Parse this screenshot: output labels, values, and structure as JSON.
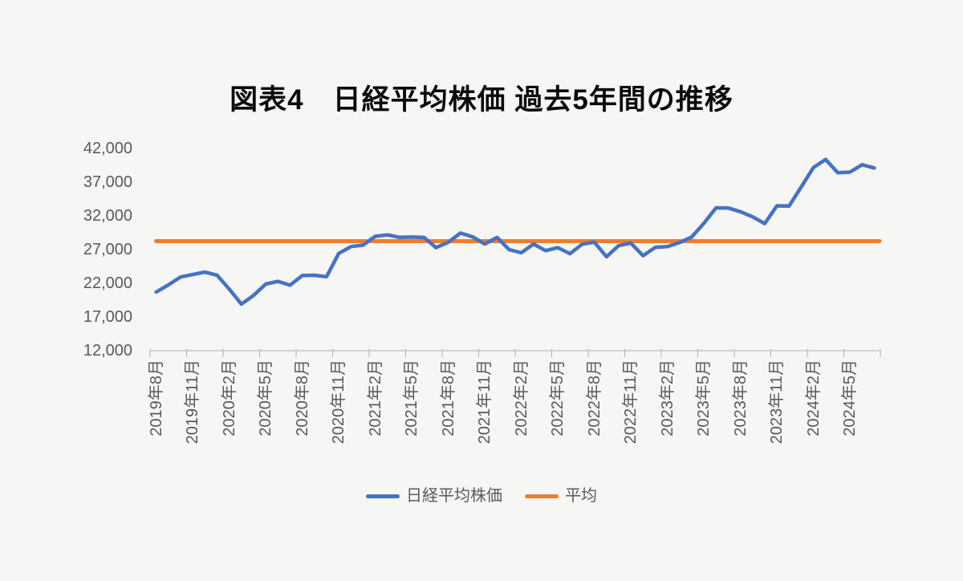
{
  "title": "図表4　日経平均株価 過去5年間の推移",
  "legend": {
    "series1": "日経平均株価",
    "series2": "平均"
  },
  "colors": {
    "nikkei_line": "#4472C4",
    "average_line": "#ED7D31",
    "background": "#F6F6F4",
    "axis": "#B0B0B0",
    "label_text": "#595959",
    "title_text": "#0A0A0A"
  },
  "y_axis": {
    "min": 12000,
    "max": 42000,
    "step": 5000,
    "tick_labels": [
      "42,000",
      "37,000",
      "32,000",
      "27,000",
      "22,000",
      "17,000",
      "12,000"
    ]
  },
  "x_axis": {
    "tick_label_every_n_months": 3,
    "tick_labels": [
      "2019年8月",
      "2019年11月",
      "2020年2月",
      "2020年5月",
      "2020年8月",
      "2020年11月",
      "2021年2月",
      "2021年5月",
      "2021年8月",
      "2021年11月",
      "2022年2月",
      "2022年5月",
      "2022年8月",
      "2022年11月",
      "2023年2月",
      "2023年5月",
      "2023年8月",
      "2023年11月",
      "2024年2月",
      "2024年5月"
    ]
  },
  "chart_data": {
    "type": "line",
    "title": "図表4　日経平均株価 過去5年間の推移",
    "xlabel": "",
    "ylabel": "",
    "ylim": [
      12000,
      42000
    ],
    "grid": false,
    "legend_position": "bottom",
    "x": [
      "2019年8月",
      "2019年9月",
      "2019年10月",
      "2019年11月",
      "2019年12月",
      "2020年1月",
      "2020年2月",
      "2020年3月",
      "2020年4月",
      "2020年5月",
      "2020年6月",
      "2020年7月",
      "2020年8月",
      "2020年9月",
      "2020年10月",
      "2020年11月",
      "2020年12月",
      "2021年1月",
      "2021年2月",
      "2021年3月",
      "2021年4月",
      "2021年5月",
      "2021年6月",
      "2021年7月",
      "2021年8月",
      "2021年9月",
      "2021年10月",
      "2021年11月",
      "2021年12月",
      "2022年1月",
      "2022年2月",
      "2022年3月",
      "2022年4月",
      "2022年5月",
      "2022年6月",
      "2022年7月",
      "2022年8月",
      "2022年9月",
      "2022年10月",
      "2022年11月",
      "2022年12月",
      "2023年1月",
      "2023年2月",
      "2023年3月",
      "2023年4月",
      "2023年5月",
      "2023年6月",
      "2023年7月",
      "2023年8月",
      "2023年9月",
      "2023年10月",
      "2023年11月",
      "2023年12月",
      "2024年1月",
      "2024年2月",
      "2024年3月",
      "2024年4月",
      "2024年5月",
      "2024年6月",
      "2024年7月"
    ],
    "series": [
      {
        "name": "日経平均株価",
        "values": [
          20704,
          21756,
          22927,
          23294,
          23657,
          23205,
          21143,
          18917,
          20194,
          21878,
          22288,
          21710,
          23140,
          23185,
          22977,
          26434,
          27444,
          27663,
          28966,
          29179,
          28813,
          28860,
          28792,
          27284,
          28090,
          29453,
          28893,
          27822,
          28792,
          27002,
          26527,
          27821,
          26848,
          27280,
          26393,
          27802,
          28092,
          25937,
          27587,
          27969,
          26095,
          27327,
          27446,
          28041,
          28856,
          30888,
          33189,
          33172,
          32619,
          31858,
          30859,
          33487,
          33464,
          36287,
          39166,
          40369,
          38406,
          38487,
          39583,
          39102
        ]
      },
      {
        "name": "平均",
        "type": "constant",
        "value": 28257
      }
    ]
  }
}
